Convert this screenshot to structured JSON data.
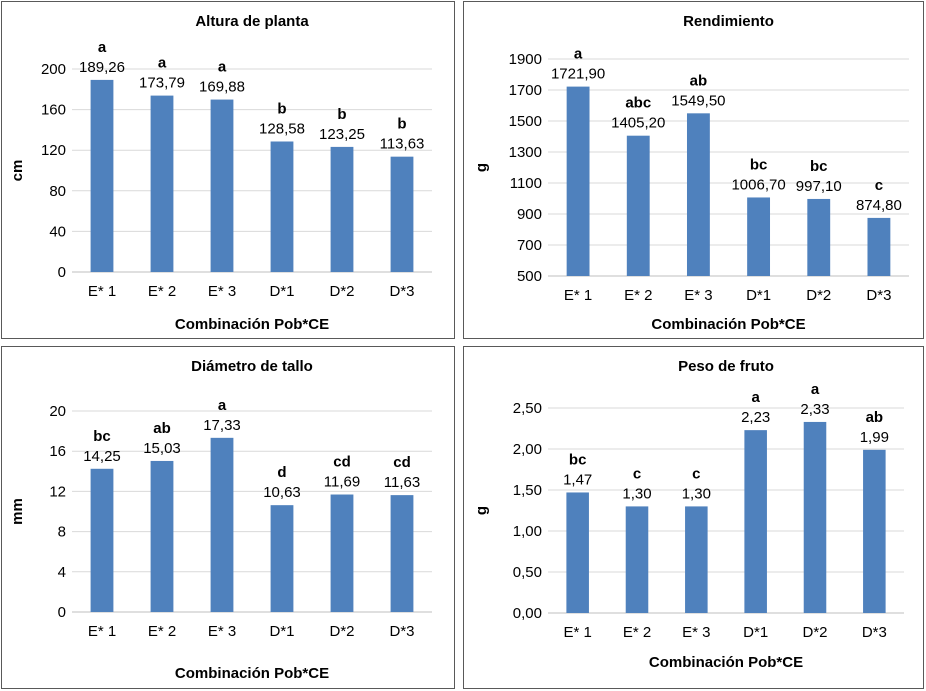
{
  "chart_data": [
    {
      "type": "bar",
      "title": "Altura de planta",
      "xlabel": "Combinación Pob*CE",
      "ylabel": "cm",
      "categories": [
        "E* 1",
        "E* 2",
        "E* 3",
        "D*1",
        "D*2",
        "D*3"
      ],
      "values": [
        189.26,
        173.79,
        169.88,
        128.58,
        123.25,
        113.63
      ],
      "value_labels": [
        "189,26",
        "173,79",
        "169,88",
        "128,58",
        "123,25",
        "113,63"
      ],
      "letters": [
        "a",
        "a",
        "a",
        "b",
        "b",
        "b"
      ],
      "ylim": [
        0,
        200
      ],
      "yticks": [
        "0",
        "40",
        "80",
        "120",
        "160",
        "200"
      ],
      "grid": true,
      "bar_color": "#4f81bd"
    },
    {
      "type": "bar",
      "title": "Rendimiento",
      "xlabel": "Combinación Pob*CE",
      "ylabel": "g",
      "categories": [
        "E* 1",
        "E* 2",
        "E* 3",
        "D*1",
        "D*2",
        "D*3"
      ],
      "values": [
        1721.9,
        1405.2,
        1549.5,
        1006.7,
        997.1,
        874.8
      ],
      "value_labels": [
        "1721,90",
        "1405,20",
        "1549,50",
        "1006,70",
        "997,10",
        "874,80"
      ],
      "letters": [
        "a",
        "abc",
        "ab",
        "bc",
        "bc",
        "c"
      ],
      "ylim": [
        500,
        1900
      ],
      "yticks": [
        "500",
        "700",
        "900",
        "1100",
        "1300",
        "1500",
        "1700",
        "1900"
      ],
      "grid": true,
      "bar_color": "#4f81bd"
    },
    {
      "type": "bar",
      "title": "Diámetro de tallo",
      "xlabel": "Combinación Pob*CE",
      "ylabel": "mm",
      "categories": [
        "E* 1",
        "E* 2",
        "E* 3",
        "D*1",
        "D*2",
        "D*3"
      ],
      "values": [
        14.25,
        15.03,
        17.33,
        10.63,
        11.69,
        11.63
      ],
      "value_labels": [
        "14,25",
        "15,03",
        "17,33",
        "10,63",
        "11,69",
        "11,63"
      ],
      "letters": [
        "bc",
        "ab",
        "a",
        "d",
        "cd",
        "cd"
      ],
      "ylim": [
        0,
        20
      ],
      "yticks": [
        "0",
        "4",
        "8",
        "12",
        "16",
        "20"
      ],
      "grid": true,
      "bar_color": "#4f81bd"
    },
    {
      "type": "bar",
      "title": "Peso de fruto",
      "xlabel": "Combinación Pob*CE",
      "ylabel": "g",
      "categories": [
        "E* 1",
        "E* 2",
        "E* 3",
        "D*1",
        "D*2",
        "D*3"
      ],
      "values": [
        1.47,
        1.3,
        1.3,
        2.23,
        2.33,
        1.99
      ],
      "value_labels": [
        "1,47",
        "1,30",
        "1,30",
        "2,23",
        "2,33",
        "1,99"
      ],
      "letters": [
        "bc",
        "c",
        "c",
        "a",
        "a",
        "ab"
      ],
      "ylim": [
        0,
        2.5
      ],
      "yticks": [
        "0,00",
        "0,50",
        "1,00",
        "1,50",
        "2,00",
        "2,50"
      ],
      "grid": true,
      "bar_color": "#4f81bd"
    }
  ]
}
